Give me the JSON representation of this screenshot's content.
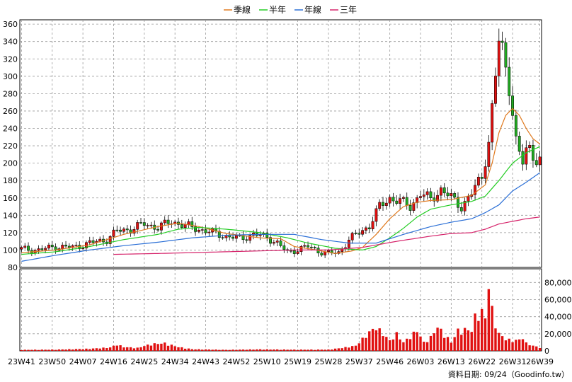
{
  "legend": {
    "items": [
      {
        "label": "季線",
        "color": "#e07a1f"
      },
      {
        "label": "半年",
        "color": "#22cc22"
      },
      {
        "label": "年線",
        "color": "#2b6fd6"
      },
      {
        "label": "三年",
        "color": "#d6246b"
      }
    ]
  },
  "source_note": "資料日期: 09/24（Goodinfo.tw）",
  "chart_data": [
    {
      "type": "candlestick",
      "ylim": [
        80,
        365
      ],
      "yticks": [
        80,
        100,
        120,
        140,
        160,
        180,
        200,
        220,
        240,
        260,
        280,
        300,
        320,
        340,
        360
      ],
      "grid": true,
      "x_ticks": [
        "23W41",
        "23W50",
        "24W07",
        "24W16",
        "24W25",
        "24W34",
        "24W43",
        "24W52",
        "25W10",
        "25W19",
        "25W28",
        "25W37",
        "25W46",
        "26W03",
        "26W13",
        "26W22",
        "26W31",
        "26W39"
      ],
      "x_tick_index": [
        0,
        9,
        18,
        27,
        36,
        45,
        54,
        63,
        72,
        81,
        90,
        99,
        108,
        117,
        126,
        135,
        144,
        152
      ],
      "n_weeks": 153,
      "close_keypoints": [
        [
          0,
          101
        ],
        [
          5,
          100
        ],
        [
          10,
          104
        ],
        [
          15,
          103
        ],
        [
          20,
          108
        ],
        [
          25,
          112
        ],
        [
          28,
          122
        ],
        [
          32,
          124
        ],
        [
          36,
          130
        ],
        [
          40,
          126
        ],
        [
          44,
          133
        ],
        [
          48,
          128
        ],
        [
          52,
          124
        ],
        [
          56,
          120
        ],
        [
          60,
          116
        ],
        [
          64,
          113
        ],
        [
          68,
          118
        ],
        [
          72,
          115
        ],
        [
          75,
          108
        ],
        [
          78,
          97
        ],
        [
          81,
          101
        ],
        [
          84,
          104
        ],
        [
          87,
          99
        ],
        [
          90,
          96
        ],
        [
          93,
          97
        ],
        [
          96,
          112
        ],
        [
          99,
          120
        ],
        [
          102,
          128
        ],
        [
          105,
          150
        ],
        [
          108,
          160
        ],
        [
          111,
          156
        ],
        [
          114,
          150
        ],
        [
          117,
          165
        ],
        [
          120,
          158
        ],
        [
          123,
          170
        ],
        [
          126,
          160
        ],
        [
          129,
          150
        ],
        [
          132,
          165
        ],
        [
          135,
          185
        ],
        [
          137,
          225
        ],
        [
          139,
          300
        ],
        [
          140,
          340
        ],
        [
          141,
          330
        ],
        [
          142,
          310
        ],
        [
          143,
          290
        ],
        [
          144,
          260
        ],
        [
          145,
          225
        ],
        [
          146,
          210
        ],
        [
          147,
          200
        ],
        [
          148,
          215
        ],
        [
          149,
          218
        ],
        [
          150,
          210
        ],
        [
          151,
          205
        ],
        [
          152,
          203
        ]
      ],
      "series": [
        {
          "name": "季線",
          "color": "#e07a1f",
          "keypoints": [
            [
              0,
              97
            ],
            [
              10,
              100
            ],
            [
              20,
              106
            ],
            [
              30,
              118
            ],
            [
              40,
              127
            ],
            [
              46,
              131
            ],
            [
              52,
              127
            ],
            [
              60,
              119
            ],
            [
              70,
              114
            ],
            [
              76,
              113
            ],
            [
              80,
              104
            ],
            [
              85,
              101
            ],
            [
              92,
              96
            ],
            [
              97,
              99
            ],
            [
              100,
              103
            ],
            [
              104,
              118
            ],
            [
              108,
              136
            ],
            [
              112,
              150
            ],
            [
              116,
              155
            ],
            [
              120,
              157
            ],
            [
              126,
              158
            ],
            [
              132,
              163
            ],
            [
              136,
              175
            ],
            [
              138,
              200
            ],
            [
              140,
              235
            ],
            [
              142,
              255
            ],
            [
              144,
              263
            ],
            [
              146,
              255
            ],
            [
              148,
              240
            ],
            [
              150,
              228
            ],
            [
              152,
              222
            ]
          ]
        },
        {
          "name": "半年",
          "color": "#22cc22",
          "keypoints": [
            [
              0,
              95
            ],
            [
              10,
              98
            ],
            [
              20,
              104
            ],
            [
              30,
              112
            ],
            [
              40,
              118
            ],
            [
              46,
              124
            ],
            [
              52,
              126
            ],
            [
              60,
              124
            ],
            [
              70,
              120
            ],
            [
              78,
              114
            ],
            [
              84,
              108
            ],
            [
              92,
              102
            ],
            [
              100,
              100
            ],
            [
              104,
              104
            ],
            [
              108,
              114
            ],
            [
              112,
              125
            ],
            [
              116,
              138
            ],
            [
              120,
              147
            ],
            [
              126,
              152
            ],
            [
              132,
              156
            ],
            [
              136,
              162
            ],
            [
              140,
              180
            ],
            [
              144,
              200
            ],
            [
              148,
              212
            ],
            [
              152,
              219
            ]
          ]
        },
        {
          "name": "年線",
          "color": "#2b6fd6",
          "keypoints": [
            [
              0,
              87
            ],
            [
              10,
              94
            ],
            [
              20,
              100
            ],
            [
              30,
              105
            ],
            [
              40,
              109
            ],
            [
              50,
              114
            ],
            [
              60,
              117
            ],
            [
              70,
              118
            ],
            [
              80,
              118
            ],
            [
              88,
              112
            ],
            [
              96,
              108
            ],
            [
              104,
              108
            ],
            [
              112,
              118
            ],
            [
              120,
              127
            ],
            [
              126,
              132
            ],
            [
              132,
              136
            ],
            [
              136,
              143
            ],
            [
              140,
              152
            ],
            [
              144,
              168
            ],
            [
              148,
              178
            ],
            [
              152,
              189
            ]
          ]
        },
        {
          "name": "三年",
          "color": "#d6246b",
          "keypoints": [
            [
              27,
              95
            ],
            [
              40,
              96
            ],
            [
              50,
              97
            ],
            [
              60,
              98
            ],
            [
              70,
              99
            ],
            [
              80,
              100
            ],
            [
              90,
              100
            ],
            [
              100,
              103
            ],
            [
              110,
              110
            ],
            [
              120,
              116
            ],
            [
              126,
              119
            ],
            [
              132,
              120
            ],
            [
              136,
              124
            ],
            [
              140,
              130
            ],
            [
              144,
              133
            ],
            [
              148,
              136
            ],
            [
              152,
              138
            ]
          ]
        }
      ],
      "legend_position": "top-center"
    },
    {
      "type": "bar",
      "ylim": [
        0,
        96000
      ],
      "yticks": [
        0,
        20000,
        40000,
        60000,
        80000
      ],
      "ytick_labels": [
        "0",
        "20,000",
        "40,000",
        "60,000",
        "80,000"
      ],
      "bar_color": "#e01010",
      "grid": true,
      "volume_keypoints": [
        [
          0,
          1200
        ],
        [
          10,
          1500
        ],
        [
          20,
          2500
        ],
        [
          26,
          4000
        ],
        [
          28,
          7500
        ],
        [
          30,
          4500
        ],
        [
          34,
          3500
        ],
        [
          38,
          8000
        ],
        [
          42,
          9000
        ],
        [
          46,
          4500
        ],
        [
          50,
          2000
        ],
        [
          60,
          1200
        ],
        [
          70,
          1800
        ],
        [
          80,
          1400
        ],
        [
          90,
          1500
        ],
        [
          94,
          3500
        ],
        [
          98,
          6000
        ],
        [
          102,
          22000
        ],
        [
          104,
          28000
        ],
        [
          106,
          20000
        ],
        [
          108,
          12000
        ],
        [
          110,
          20000
        ],
        [
          112,
          10000
        ],
        [
          116,
          24000
        ],
        [
          118,
          10000
        ],
        [
          120,
          16000
        ],
        [
          122,
          28000
        ],
        [
          124,
          20000
        ],
        [
          126,
          10000
        ],
        [
          128,
          24000
        ],
        [
          130,
          25000
        ],
        [
          132,
          24000
        ],
        [
          133,
          40000
        ],
        [
          134,
          44000
        ],
        [
          135,
          46000
        ],
        [
          136,
          38000
        ],
        [
          137,
          80000
        ],
        [
          138,
          48000
        ],
        [
          139,
          32000
        ],
        [
          140,
          20000
        ],
        [
          142,
          14000
        ],
        [
          144,
          12000
        ],
        [
          146,
          13000
        ],
        [
          147,
          16000
        ],
        [
          148,
          9000
        ],
        [
          150,
          6000
        ],
        [
          152,
          4000
        ]
      ]
    }
  ]
}
